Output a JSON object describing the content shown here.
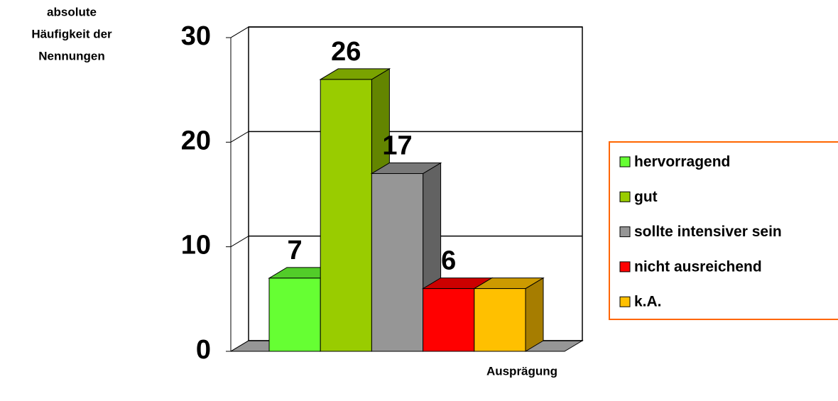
{
  "chart_data": {
    "type": "bar3d",
    "y_label": [
      "absolute",
      "Häufigkeit der",
      "Nennungen"
    ],
    "x_label": "Ausprägung",
    "categories": [
      null
    ],
    "series": [
      {
        "name": "hervorragend",
        "color": "#66ff33",
        "values": [
          7
        ],
        "data_labels": true
      },
      {
        "name": "gut",
        "color": "#99cc00",
        "values": [
          26
        ],
        "data_labels": true
      },
      {
        "name": "sollte intensiver sein",
        "color": "#969696",
        "values": [
          17
        ],
        "data_labels": true
      },
      {
        "name": "nicht ausreichend",
        "color": "#ff0000",
        "values": [
          6
        ],
        "data_labels": true
      },
      {
        "name": "k.A.",
        "color": "#ffc000",
        "values": [
          6
        ],
        "data_labels": false
      }
    ],
    "ylim": [
      0,
      30
    ],
    "yticks": [
      0,
      10,
      20,
      30
    ],
    "grid": true,
    "legend": "right"
  }
}
